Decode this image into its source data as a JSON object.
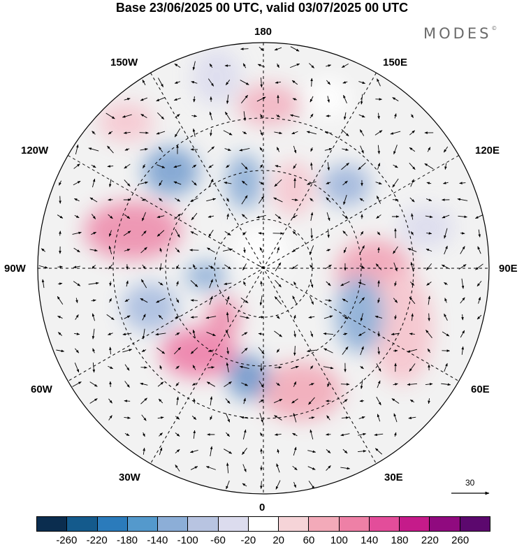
{
  "title": "Base 23/06/2025 00 UTC, valid 03/07/2025 00 UTC",
  "brand": "MODES",
  "brand_mark": "©",
  "longitude_labels": {
    "n180": "180",
    "w150": "150W",
    "e150": "150E",
    "w120": "120W",
    "e120": "120E",
    "w90": "90W",
    "e90": "90E",
    "w60": "60W",
    "e60": "60E",
    "w30": "30W",
    "e30": "30E",
    "s0": "0"
  },
  "reference_vector": "30",
  "colorbar": {
    "colors": [
      "#0b2d4f",
      "#145a8c",
      "#2b7bbb",
      "#5499cc",
      "#8caed7",
      "#b8c4e1",
      "#dcdcee",
      "#ffffff",
      "#f6d4d8",
      "#f3aab9",
      "#ee80a6",
      "#e34d9a",
      "#c51b8a",
      "#900a7f",
      "#5c086e"
    ],
    "tick_labels": [
      "-260",
      "-220",
      "-180",
      "-140",
      "-100",
      "-60",
      "-20",
      "20",
      "60",
      "100",
      "140",
      "180",
      "220",
      "260"
    ]
  }
}
